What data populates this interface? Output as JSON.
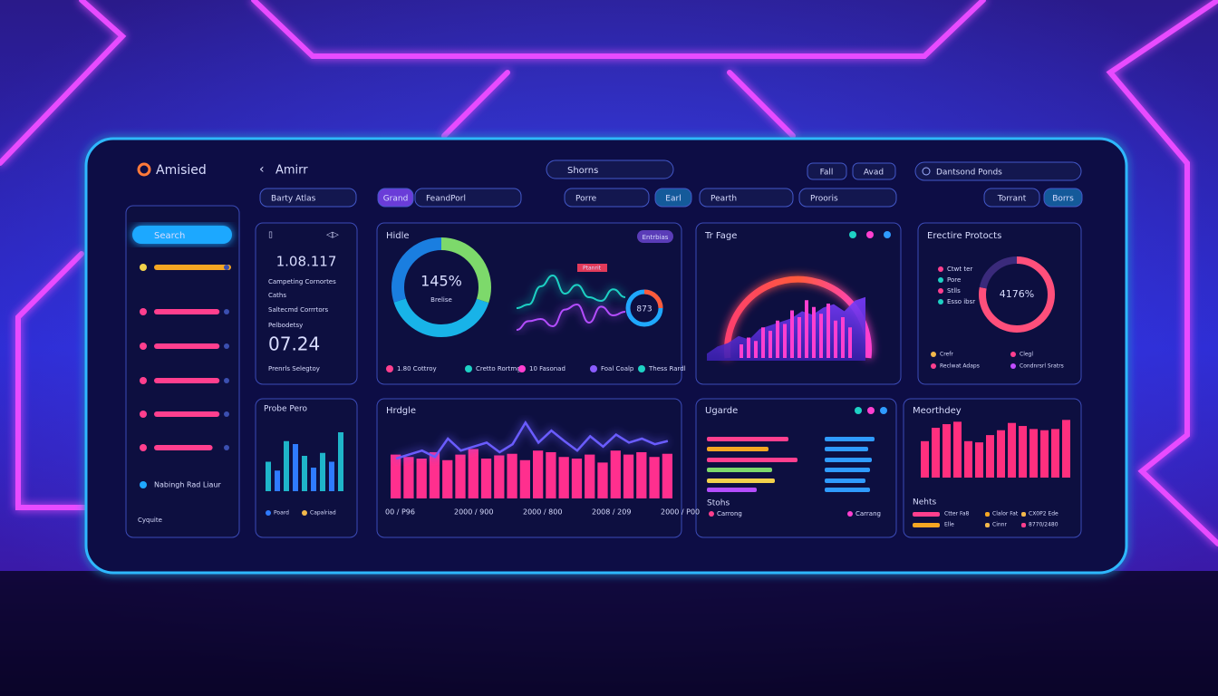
{
  "brand": "Amisied",
  "header": {
    "back": "Amirr",
    "search": "Shorns",
    "actions": [
      "Fall",
      "Avad"
    ],
    "account": "Dantsond Ponds"
  },
  "filters": [
    "Barty Atlas",
    "Grand",
    "FeandPorl",
    "Porre",
    "Earl",
    "Pearth",
    "Prooris",
    "Torrant",
    "Borrs"
  ],
  "sidebar": {
    "active": "Search",
    "xlim": [
      0,
      100
    ],
    "items": [
      {
        "color": "#f5a623",
        "level": 100
      },
      {
        "color": "#ff3f8e",
        "level": 85
      },
      {
        "color": "#ff3f8e",
        "level": 85
      },
      {
        "color": "#ff3f8e",
        "level": 85
      },
      {
        "color": "#ff3f8e",
        "level": 85
      },
      {
        "color": "#ff3f8e",
        "level": 76
      }
    ],
    "footer_item": "Nabingh Rad Liaur",
    "bottom": "Cyquite"
  },
  "summary": {
    "value": "1.08.117",
    "lines": [
      "Campeting Cornortes",
      "Caths",
      "Saltecmd Corrrtors",
      "Pelbodetsy"
    ],
    "highlight": "07.24",
    "footer": "Prenrls Selegtoy"
  },
  "probe": {
    "title": "Probe Pero",
    "ylim": [
      0,
      100
    ],
    "values": [
      50,
      35,
      85,
      80,
      60,
      40,
      65,
      50,
      100
    ],
    "colors": [
      "#1fb5c9",
      "#2f7bff"
    ],
    "legend": [
      "Poard",
      "Capalriad"
    ],
    "legend_colors": [
      "#2f7bff",
      "#f2b84b"
    ]
  },
  "hidle": {
    "title": "Hidle",
    "badge": "Entrbias",
    "donut": {
      "center": "145%",
      "caption": "Brelise",
      "segments": [
        {
          "value": 30,
          "color": "#7dd96b"
        },
        {
          "value": 40,
          "color": "#18b3e8"
        },
        {
          "value": 30,
          "color": "#1a7ee0"
        }
      ]
    },
    "wave": {
      "label": "Ptanrit",
      "ylim": [
        0,
        100
      ],
      "series": [
        {
          "color": "#1ed1c4",
          "values": [
            40,
            45,
            70,
            85,
            60,
            72,
            55,
            50,
            66,
            55
          ]
        },
        {
          "color": "#b44dff",
          "values": [
            10,
            22,
            25,
            15,
            38,
            45,
            20,
            42,
            30,
            35
          ]
        }
      ]
    },
    "small_donut": "873",
    "legend": [
      {
        "label": "1.80 Cottroy",
        "color": "#ff3f8e"
      },
      {
        "label": "Cretto Rortmg",
        "color": "#1ed1c4"
      },
      {
        "label": "10 Fasonad",
        "color": "#ff3fd0"
      },
      {
        "label": "Foal Coalp",
        "color": "#8a5cff"
      },
      {
        "label": "Thess Rardl",
        "color": "#1ed1c4"
      }
    ]
  },
  "trpage": {
    "title": "Tr Fage",
    "ylim": [
      0,
      100
    ],
    "bars": [
      20,
      30,
      25,
      45,
      40,
      55,
      50,
      70,
      60,
      85,
      75,
      65,
      80,
      55,
      60,
      45
    ],
    "area": [
      10,
      20,
      25,
      35,
      30,
      45,
      50,
      55,
      60,
      70,
      65,
      75,
      80,
      70,
      85,
      90
    ]
  },
  "protocts": {
    "title": "Erectire Protocts",
    "center": "4176%",
    "segments": [
      {
        "value": 78,
        "color": "#ff4f7b"
      },
      {
        "value": 22,
        "color": "#3a2a7b"
      }
    ],
    "side": [
      "Ctwt ter",
      "Pore",
      "Stlls",
      "Esso ibsr"
    ],
    "legend": [
      {
        "label": "Crefr",
        "color": "#f2b84b"
      },
      {
        "label": "Clegl",
        "color": "#ff3f8e"
      },
      {
        "label": "Reclwat Adaps",
        "color": "#ff3f8e"
      },
      {
        "label": "Condnrsrl Sratrs",
        "color": "#c24dff"
      }
    ]
  },
  "hrdgle": {
    "title": "Hrdgle",
    "ylim": [
      0,
      100
    ],
    "bars": [
      55,
      52,
      50,
      58,
      48,
      55,
      62,
      50,
      54,
      56,
      48,
      60,
      58,
      52,
      50,
      55,
      45,
      60,
      55,
      58,
      52,
      56
    ],
    "line": [
      50,
      55,
      60,
      52,
      75,
      60,
      65,
      70,
      58,
      68,
      95,
      70,
      85,
      72,
      60,
      78,
      65,
      80,
      70,
      75,
      68,
      72
    ],
    "xlabels": [
      "00 / P96",
      "2000 / 900",
      "2000 / 800",
      "2008 / 209",
      "2000 / P00"
    ]
  },
  "ugarde": {
    "title": "Ugarde",
    "xlim": [
      0,
      100
    ],
    "left": [
      {
        "value": 90,
        "color": "#ff3f8e"
      },
      {
        "value": 68,
        "color": "#f5a623"
      },
      {
        "value": 100,
        "color": "#ff3f8e"
      },
      {
        "value": 72,
        "color": "#7dd96b"
      },
      {
        "value": 75,
        "color": "#f2d14b"
      },
      {
        "value": 55,
        "color": "#b44dff"
      }
    ],
    "right": [
      55,
      48,
      52,
      50,
      45,
      50
    ],
    "right_color": "#2f9bff",
    "footer": "Stohs",
    "legend": [
      {
        "label": "Carrong",
        "color": "#ff3f8e"
      },
      {
        "label": "Carrang",
        "color": "#ff3fd0"
      }
    ]
  },
  "meorth": {
    "title": "Meorthdey",
    "ylim": [
      0,
      100
    ],
    "values": [
      60,
      82,
      88,
      92,
      60,
      58,
      70,
      78,
      90,
      85,
      80,
      78,
      80,
      95
    ],
    "color": "#ff2f7e",
    "footer": "Nehts",
    "legend": [
      {
        "label": "Ctter Fa8",
        "color": "#ff3f8e"
      },
      {
        "label": "Clalor Fat",
        "color": "#f5a623"
      },
      {
        "label": "CX0P2 Ede",
        "color": "#f2b84b"
      },
      {
        "label": "Elle",
        "color": "#f5a623"
      },
      {
        "label": "Cinnr",
        "color": "#f2b84b"
      },
      {
        "label": "8770/2480",
        "color": "#ff3f8e"
      }
    ]
  }
}
